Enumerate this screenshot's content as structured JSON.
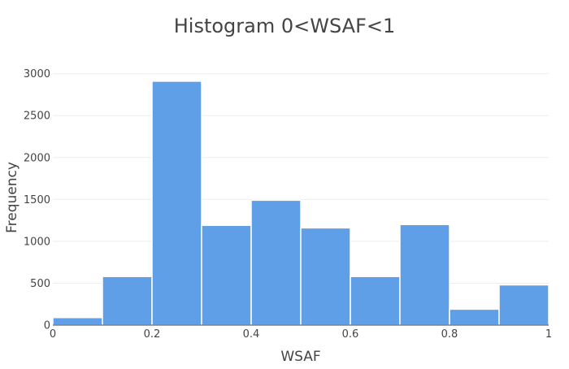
{
  "chart_data": {
    "type": "bar",
    "title": "Histogram 0<WSAF<1",
    "xlabel": "WSAF",
    "ylabel": "Frequency",
    "bin_edges": [
      0,
      0.1,
      0.2,
      0.3,
      0.4,
      0.5,
      0.6,
      0.7,
      0.8,
      0.9,
      1.0
    ],
    "values": [
      90,
      580,
      2910,
      1190,
      1490,
      1160,
      580,
      1200,
      190,
      480
    ],
    "xlim": [
      0,
      1
    ],
    "ylim": [
      0,
      3200
    ],
    "x_ticks": [
      {
        "value": 0,
        "label": "0"
      },
      {
        "value": 0.2,
        "label": "0.2"
      },
      {
        "value": 0.4,
        "label": "0.4"
      },
      {
        "value": 0.6,
        "label": "0.6"
      },
      {
        "value": 0.8,
        "label": "0.8"
      },
      {
        "value": 1,
        "label": "1"
      }
    ],
    "y_ticks": [
      {
        "value": 0,
        "label": "0"
      },
      {
        "value": 500,
        "label": "500"
      },
      {
        "value": 1000,
        "label": "1000"
      },
      {
        "value": 1500,
        "label": "1500"
      },
      {
        "value": 2000,
        "label": "2000"
      },
      {
        "value": 2500,
        "label": "2500"
      },
      {
        "value": 3000,
        "label": "3000"
      }
    ],
    "grid": true,
    "bar_color": "#5f9fe8"
  }
}
